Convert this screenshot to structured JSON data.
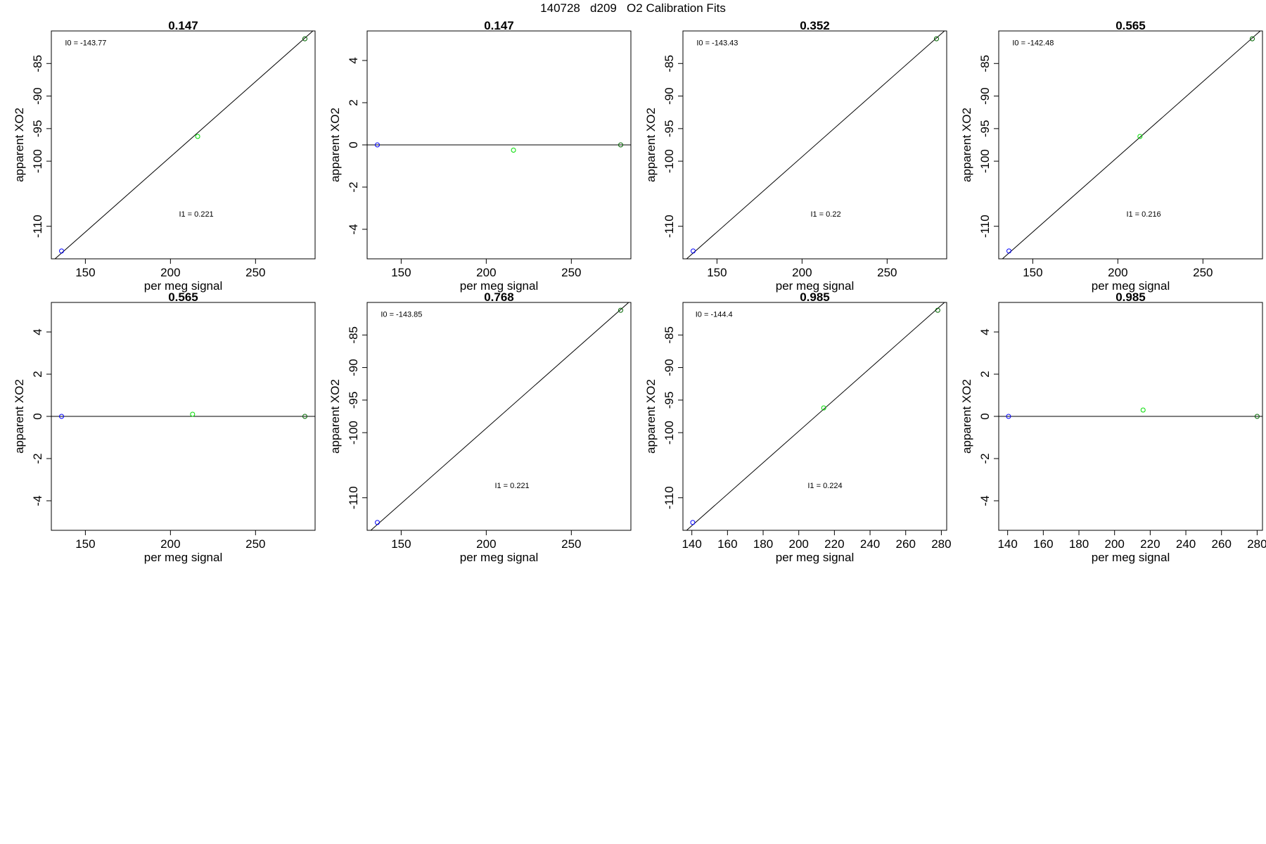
{
  "main_title": "140728   d209   O2 Calibration Fits",
  "chart_data": [
    {
      "type": "scatter",
      "title": "0.147",
      "xlabel": "per meg signal",
      "ylabel": "apparent XO2",
      "xlim": [
        130,
        285
      ],
      "ylim": [
        -115,
        -80
      ],
      "xticks": [
        150,
        200,
        250
      ],
      "yticks": [
        -110,
        -100,
        -95,
        -90,
        -85
      ],
      "points": [
        {
          "x": 136,
          "y": -113.8,
          "color": "#0000ff"
        },
        {
          "x": 216,
          "y": -96.2,
          "color": "#00dd00"
        },
        {
          "x": 279,
          "y": -81.2,
          "color": "#006600"
        }
      ],
      "fit_line": [
        [
          130,
          -115.5
        ],
        [
          285,
          -79.7
        ]
      ],
      "annotations": [
        {
          "text": "I0 =  -143.77",
          "x": 138,
          "y": -82.2
        },
        {
          "text": "I1 =  0.221",
          "x": 205,
          "y": -108.5
        }
      ]
    },
    {
      "type": "scatter",
      "title": "0.147",
      "xlabel": "per meg signal",
      "ylabel": "apparent XO2",
      "xlim": [
        130,
        285
      ],
      "ylim": [
        -5.4,
        5.4
      ],
      "xticks": [
        150,
        200,
        250
      ],
      "yticks": [
        -4,
        -2,
        0,
        2,
        4
      ],
      "points": [
        {
          "x": 136,
          "y": 0,
          "color": "#0000ff"
        },
        {
          "x": 216,
          "y": -0.25,
          "color": "#00dd00"
        },
        {
          "x": 279,
          "y": 0,
          "color": "#006600"
        }
      ],
      "fit_line": [
        [
          130,
          0
        ],
        [
          285,
          0
        ]
      ],
      "annotations": []
    },
    {
      "type": "scatter",
      "title": "0.352",
      "xlabel": "per meg signal",
      "ylabel": "apparent XO2",
      "xlim": [
        130,
        285
      ],
      "ylim": [
        -115,
        -80
      ],
      "xticks": [
        150,
        200,
        250
      ],
      "yticks": [
        -110,
        -100,
        -95,
        -90,
        -85
      ],
      "points": [
        {
          "x": 136,
          "y": -113.8,
          "color": "#0000ff"
        },
        {
          "x": 279,
          "y": -81.2,
          "color": "#006600"
        }
      ],
      "fit_line": [
        [
          130,
          -115.5
        ],
        [
          285,
          -79.7
        ]
      ],
      "annotations": [
        {
          "text": "I0 =  -143.43",
          "x": 138,
          "y": -82.2
        },
        {
          "text": "I1 =  0.22",
          "x": 205,
          "y": -108.5
        }
      ]
    },
    {
      "type": "scatter",
      "title": "0.565",
      "xlabel": "per meg signal",
      "ylabel": "apparent XO2",
      "xlim": [
        130,
        285
      ],
      "ylim": [
        -115,
        -80
      ],
      "xticks": [
        150,
        200,
        250
      ],
      "yticks": [
        -110,
        -100,
        -95,
        -90,
        -85
      ],
      "points": [
        {
          "x": 136,
          "y": -113.8,
          "color": "#0000ff"
        },
        {
          "x": 213,
          "y": -96.2,
          "color": "#00dd00"
        },
        {
          "x": 279,
          "y": -81.2,
          "color": "#006600"
        }
      ],
      "fit_line": [
        [
          130,
          -115.5
        ],
        [
          285,
          -79.7
        ]
      ],
      "annotations": [
        {
          "text": "I0 =  -142.48",
          "x": 138,
          "y": -82.2
        },
        {
          "text": "I1 =  0.216",
          "x": 205,
          "y": -108.5
        }
      ]
    },
    {
      "type": "scatter",
      "title": "0.565",
      "xlabel": "per meg signal",
      "ylabel": "apparent XO2",
      "xlim": [
        130,
        285
      ],
      "ylim": [
        -5.4,
        5.4
      ],
      "xticks": [
        150,
        200,
        250
      ],
      "yticks": [
        -4,
        -2,
        0,
        2,
        4
      ],
      "points": [
        {
          "x": 136,
          "y": 0,
          "color": "#0000ff"
        },
        {
          "x": 213,
          "y": 0.1,
          "color": "#00dd00"
        },
        {
          "x": 279,
          "y": 0,
          "color": "#006600"
        }
      ],
      "fit_line": [
        [
          130,
          0
        ],
        [
          285,
          0
        ]
      ],
      "annotations": []
    },
    {
      "type": "scatter",
      "title": "0.768",
      "xlabel": "per meg signal",
      "ylabel": "apparent XO2",
      "xlim": [
        130,
        285
      ],
      "ylim": [
        -115,
        -80
      ],
      "xticks": [
        150,
        200,
        250
      ],
      "yticks": [
        -110,
        -100,
        -95,
        -90,
        -85
      ],
      "points": [
        {
          "x": 136,
          "y": -113.8,
          "color": "#0000ff"
        },
        {
          "x": 279,
          "y": -81.2,
          "color": "#006600"
        }
      ],
      "fit_line": [
        [
          130,
          -115.5
        ],
        [
          285,
          -79.7
        ]
      ],
      "annotations": [
        {
          "text": "I0 =  -143.85",
          "x": 138,
          "y": -82.2
        },
        {
          "text": "I1 =  0.221",
          "x": 205,
          "y": -108.5
        }
      ]
    },
    {
      "type": "scatter",
      "title": "0.985",
      "xlabel": "per meg signal",
      "ylabel": "apparent XO2",
      "xlim": [
        135,
        283
      ],
      "ylim": [
        -115,
        -80
      ],
      "xticks": [
        140,
        160,
        180,
        200,
        220,
        240,
        260,
        280
      ],
      "yticks": [
        -110,
        -100,
        -95,
        -90,
        -85
      ],
      "points": [
        {
          "x": 140.5,
          "y": -113.8,
          "color": "#0000ff"
        },
        {
          "x": 214,
          "y": -96.2,
          "color": "#00dd00"
        },
        {
          "x": 278,
          "y": -81.2,
          "color": "#006600"
        }
      ],
      "fit_line": [
        [
          135,
          -115.5
        ],
        [
          283,
          -79.7
        ]
      ],
      "annotations": [
        {
          "text": "I0 =  -144.4",
          "x": 142,
          "y": -82.2
        },
        {
          "text": "I1 =  0.224",
          "x": 205,
          "y": -108.5
        }
      ]
    },
    {
      "type": "scatter",
      "title": "0.985",
      "xlabel": "per meg signal",
      "ylabel": "apparent XO2",
      "xlim": [
        135,
        283
      ],
      "ylim": [
        -5.4,
        5.4
      ],
      "xticks": [
        140,
        160,
        180,
        200,
        220,
        240,
        260,
        280
      ],
      "yticks": [
        -4,
        -2,
        0,
        2,
        4
      ],
      "points": [
        {
          "x": 140.5,
          "y": 0,
          "color": "#0000ff"
        },
        {
          "x": 216,
          "y": 0.3,
          "color": "#00dd00"
        },
        {
          "x": 280,
          "y": 0,
          "color": "#006600"
        }
      ],
      "fit_line": [
        [
          135,
          0
        ],
        [
          283,
          0
        ]
      ],
      "annotations": []
    }
  ]
}
